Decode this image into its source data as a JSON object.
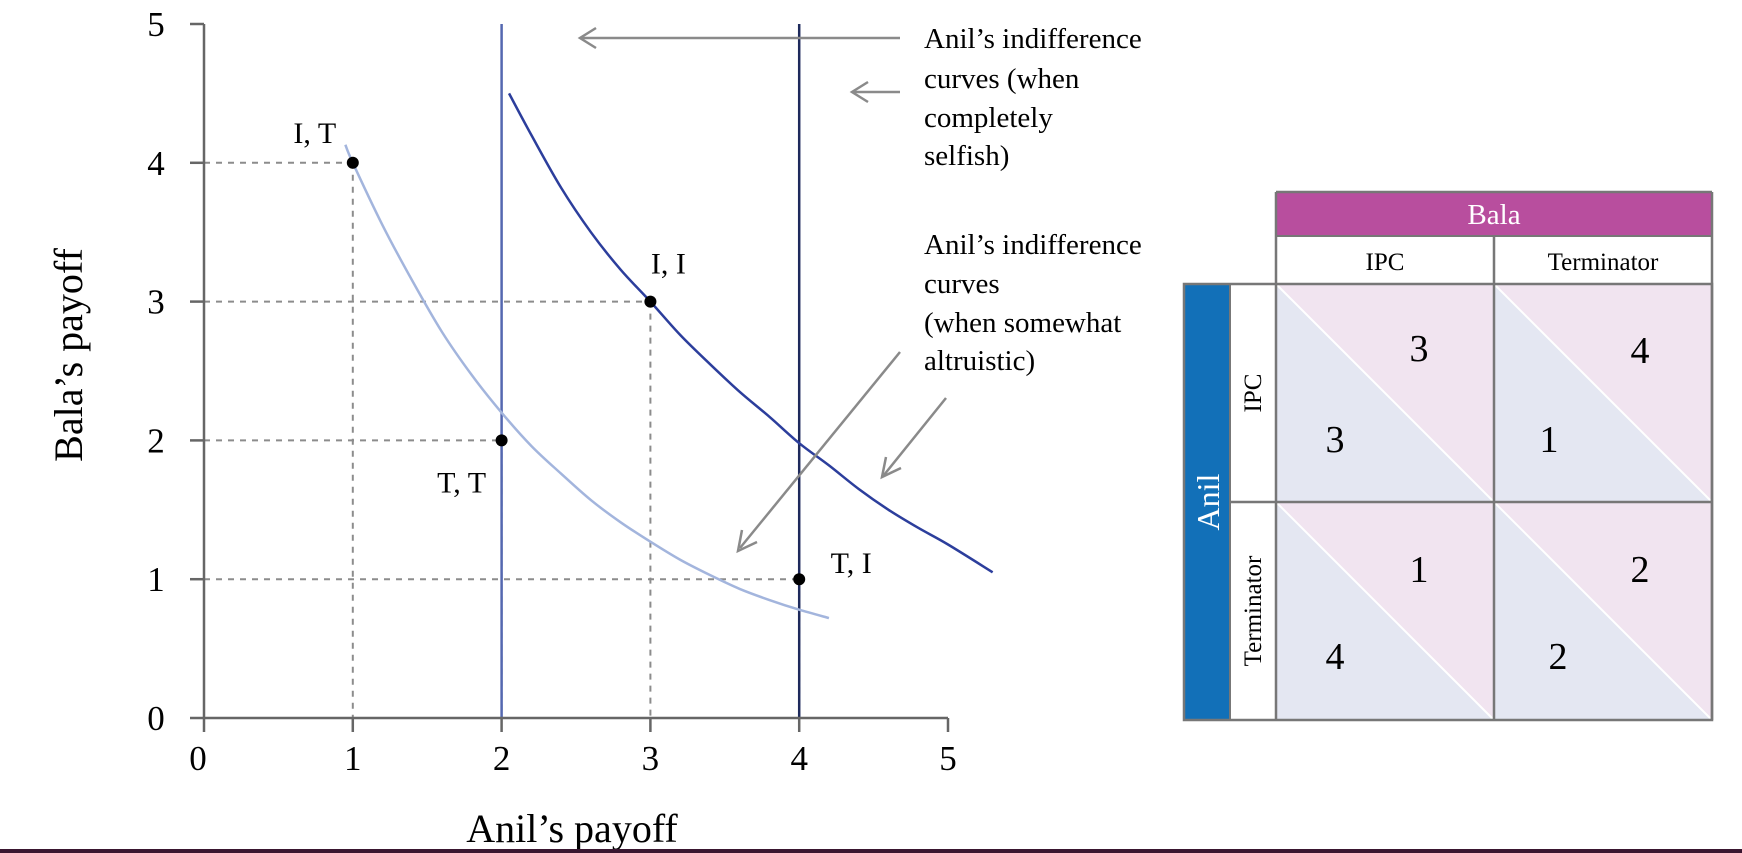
{
  "colors": {
    "axis": "#666666",
    "grid_dashed": "#8c8c8c",
    "selfish_line_1": "#5468b0",
    "selfish_line_2": "#1e2a5c",
    "altruistic_curve_light": "#a3b5dd",
    "altruistic_curve_dark": "#2c3e9c",
    "arrow": "#8a8a8a",
    "bala_header": "#b84e9e",
    "anil_header": "#1270b8",
    "anil_cell": "#e4e7f2",
    "bala_cell": "#f1e4f0",
    "table_border": "#777777"
  },
  "chart_data": {
    "type": "line",
    "xlabel": "Anil’s payoff",
    "ylabel": "Bala’s payoff",
    "xlim": [
      0,
      5
    ],
    "ylim": [
      0,
      5
    ],
    "x_ticks": [
      "0",
      "1",
      "2",
      "3",
      "4",
      "5"
    ],
    "y_ticks": [
      "0",
      "1",
      "2",
      "3",
      "4",
      "5"
    ],
    "points": [
      {
        "label": "I, T",
        "x": 1,
        "y": 4
      },
      {
        "label": "I, I",
        "x": 3,
        "y": 3
      },
      {
        "label": "T, T",
        "x": 2,
        "y": 2
      },
      {
        "label": "T, I",
        "x": 4,
        "y": 1
      }
    ],
    "selfish_indifference_lines": [
      {
        "x": 2
      },
      {
        "x": 4
      }
    ],
    "altruistic_indifference_curves": [
      {
        "points": [
          [
            0.95,
            4.13
          ],
          [
            1.0,
            4.0
          ],
          [
            1.2,
            3.55
          ],
          [
            1.4,
            3.15
          ],
          [
            1.6,
            2.78
          ],
          [
            1.8,
            2.47
          ],
          [
            2.0,
            2.2
          ],
          [
            2.2,
            1.96
          ],
          [
            2.4,
            1.76
          ],
          [
            2.6,
            1.57
          ],
          [
            2.8,
            1.41
          ],
          [
            3.0,
            1.27
          ],
          [
            3.2,
            1.14
          ],
          [
            3.4,
            1.03
          ],
          [
            3.6,
            0.93
          ],
          [
            3.8,
            0.85
          ],
          [
            4.0,
            0.78
          ],
          [
            4.2,
            0.72
          ]
        ]
      },
      {
        "points": [
          [
            2.05,
            4.5
          ],
          [
            2.2,
            4.2
          ],
          [
            2.4,
            3.82
          ],
          [
            2.6,
            3.5
          ],
          [
            2.8,
            3.23
          ],
          [
            3.0,
            3.0
          ],
          [
            3.2,
            2.76
          ],
          [
            3.4,
            2.55
          ],
          [
            3.6,
            2.35
          ],
          [
            3.8,
            2.17
          ],
          [
            4.0,
            1.98
          ],
          [
            4.2,
            1.82
          ],
          [
            4.4,
            1.65
          ],
          [
            4.6,
            1.5
          ],
          [
            4.8,
            1.37
          ],
          [
            5.0,
            1.25
          ],
          [
            5.3,
            1.05
          ]
        ]
      }
    ],
    "annotations": [
      "Anil’s indifference curves (when completely selfish)",
      "Anil’s indifference curves (when somewhat altruistic)"
    ]
  },
  "annotations": {
    "selfish": [
      "Anil’s indifference",
      "curves (when",
      "completely",
      "selfish)"
    ],
    "altruistic": [
      "Anil’s indifference",
      "curves",
      "(when somewhat",
      "altruistic)"
    ]
  },
  "payoff_table": {
    "column_player": "Bala",
    "row_player": "Anil",
    "columns": [
      "IPC",
      "Terminator"
    ],
    "rows": [
      "IPC",
      "Terminator"
    ],
    "cells": [
      [
        {
          "anil": "3",
          "bala": "3"
        },
        {
          "anil": "1",
          "bala": "4"
        }
      ],
      [
        {
          "anil": "4",
          "bala": "1"
        },
        {
          "anil": "2",
          "bala": "2"
        }
      ]
    ]
  }
}
